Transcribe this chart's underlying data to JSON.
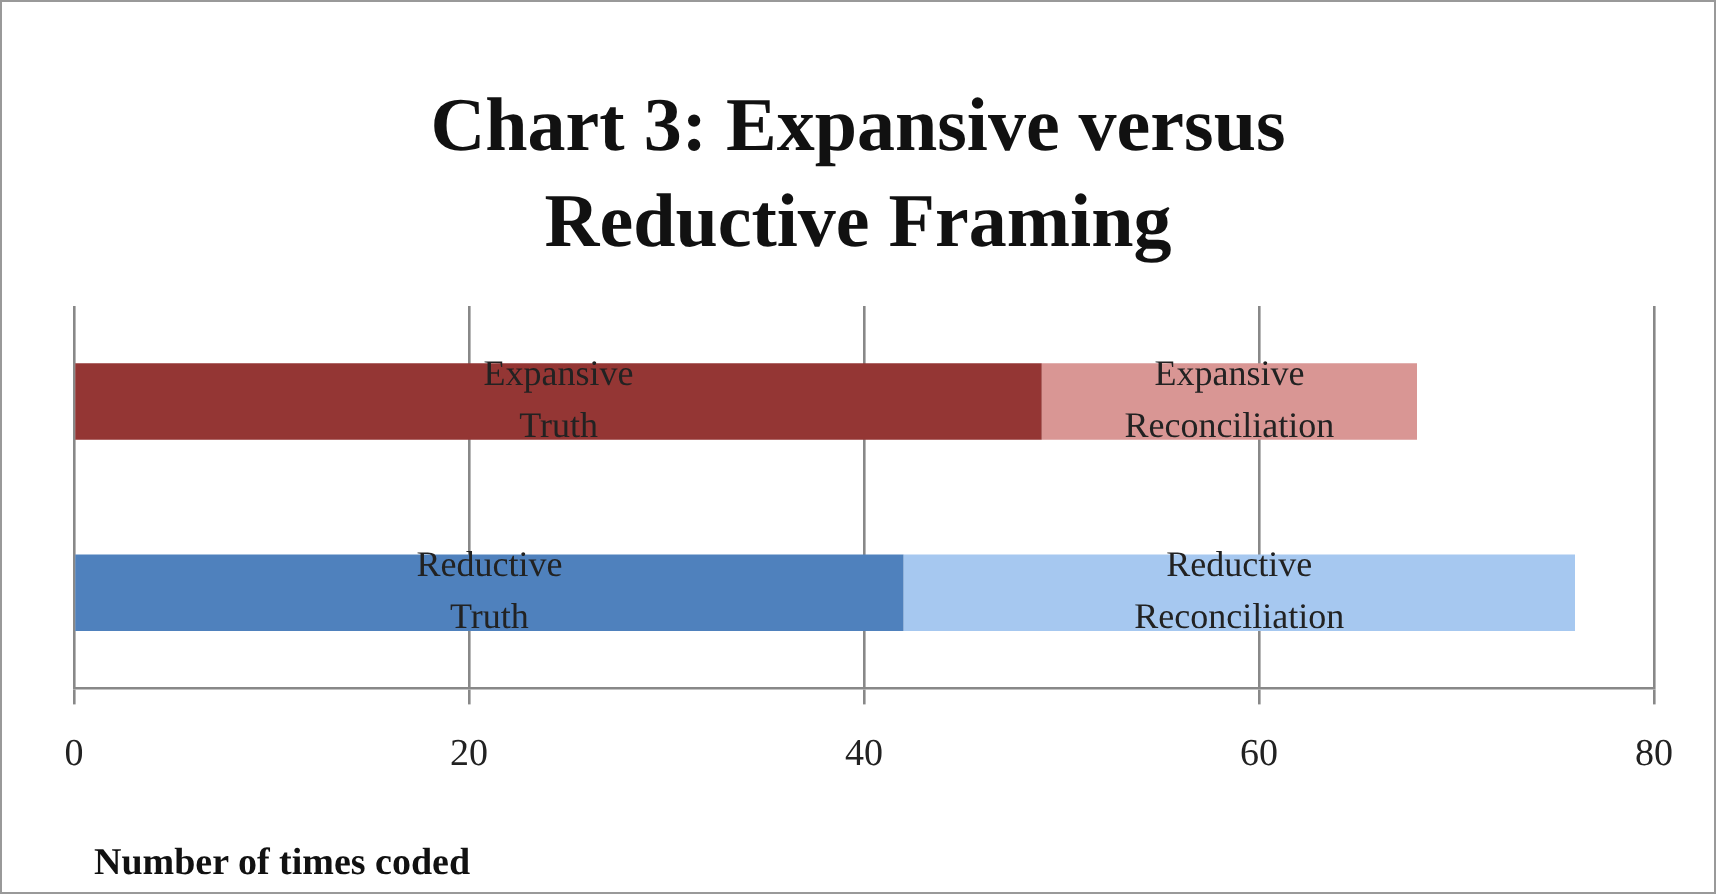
{
  "chart_data": {
    "type": "bar",
    "orientation": "horizontal",
    "stacked": true,
    "title": "Chart 3: Expansive versus Reductive Framing",
    "xlabel": "Number of times coded",
    "categories": [
      null,
      null
    ],
    "series": [
      {
        "name": "Expansive Truth",
        "color": "#943634",
        "values": [
          49,
          null
        ]
      },
      {
        "name": "Expansive Reconciliation",
        "color": "#d99694",
        "values": [
          19,
          null
        ]
      },
      {
        "name": "Reductive Truth",
        "color": "#4f81bd",
        "values": [
          null,
          42
        ]
      },
      {
        "name": "Reductive Reconciliation",
        "color": "#a6c8f0",
        "values": [
          null,
          34
        ]
      }
    ],
    "xlim": [
      0,
      80
    ],
    "xticks": [
      0,
      20,
      40,
      60,
      80
    ],
    "grid": "x",
    "legend": false
  }
}
